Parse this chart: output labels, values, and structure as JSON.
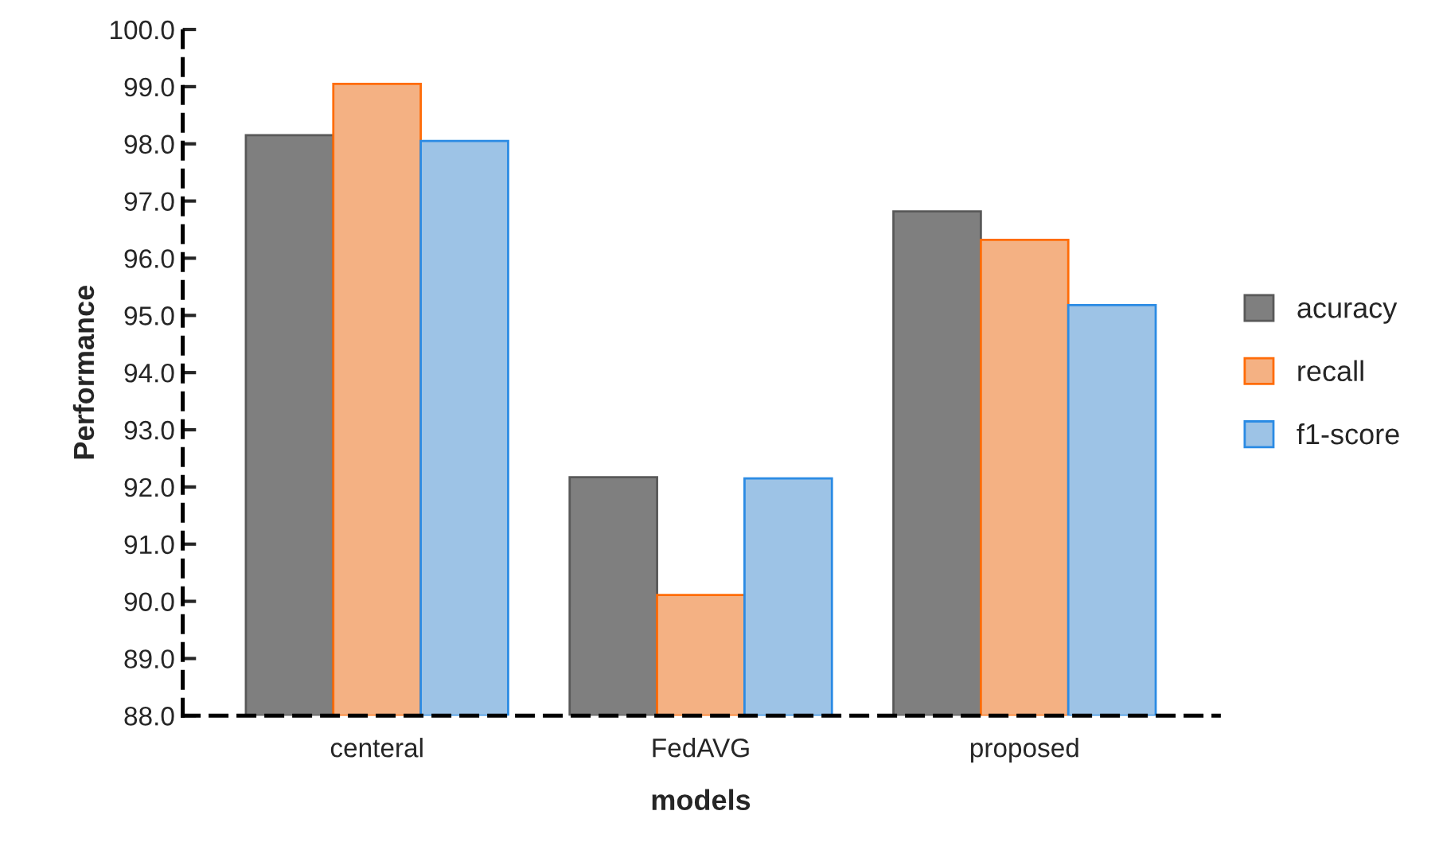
{
  "chart_data": {
    "type": "bar",
    "xlabel": "models",
    "ylabel": "Performance",
    "categories": [
      "centeral",
      "FedAVG",
      "proposed"
    ],
    "series": [
      {
        "name": "acuracy",
        "color": "#7f7f7f",
        "values": [
          98.15,
          92.17,
          96.82
        ]
      },
      {
        "name": "recall",
        "color": "#f4b183",
        "values": [
          99.05,
          90.11,
          96.32
        ]
      },
      {
        "name": "f1-score",
        "color": "#9dc3e6",
        "values": [
          98.05,
          92.15,
          95.18
        ]
      }
    ],
    "ylim": [
      88,
      100
    ],
    "yticks": [
      {
        "value": 88,
        "label": "88.0"
      },
      {
        "value": 89,
        "label": "89.0"
      },
      {
        "value": 90,
        "label": "90.0"
      },
      {
        "value": 91,
        "label": "91.0"
      },
      {
        "value": 92,
        "label": "92.0"
      },
      {
        "value": 93,
        "label": "93.0"
      },
      {
        "value": 94,
        "label": "94.0"
      },
      {
        "value": 95,
        "label": "95.0"
      },
      {
        "value": 96,
        "label": "96.0"
      },
      {
        "value": 97,
        "label": "97.0"
      },
      {
        "value": 98,
        "label": "98.0"
      },
      {
        "value": 99,
        "label": "99.0"
      },
      {
        "value": 100,
        "label": "100.0"
      }
    ],
    "grid": false,
    "legend": "right"
  }
}
